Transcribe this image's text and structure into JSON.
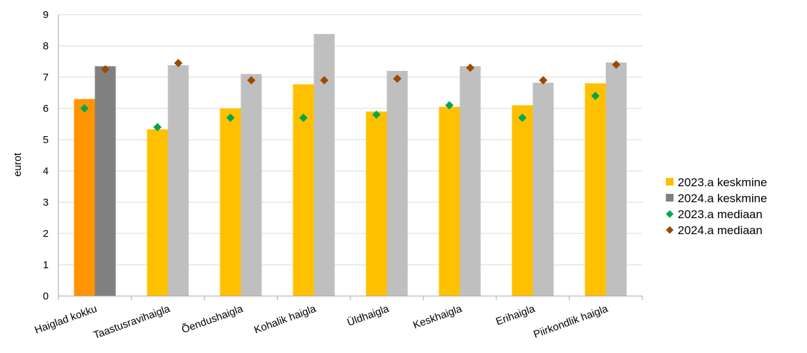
{
  "chart_data": {
    "type": "bar",
    "categories": [
      "Haiglad kokku",
      "Taastusravihaigla",
      "Õendushaigla",
      "Kohalik haigla",
      "Üldhaigla",
      "Keskhaigla",
      "Erihaigla",
      "Piirkondlik haigla"
    ],
    "series": [
      {
        "name": "2023.a keskmine",
        "kind": "bar",
        "color": "#FFC000",
        "highlight_color": "#FF9400",
        "values": [
          6.3,
          5.33,
          6.0,
          6.77,
          5.9,
          6.05,
          6.1,
          6.8
        ]
      },
      {
        "name": "2024.a keskmine",
        "kind": "bar",
        "color": "#BFBFBF",
        "highlight_color": "#808080",
        "values": [
          7.35,
          7.38,
          7.1,
          8.38,
          7.2,
          7.35,
          6.82,
          7.47
        ]
      },
      {
        "name": "2023.a mediaan",
        "kind": "marker",
        "color": "#00A650",
        "values": [
          6.0,
          5.4,
          5.7,
          5.7,
          5.8,
          6.1,
          5.7,
          6.4
        ]
      },
      {
        "name": "2024.a mediaan",
        "kind": "marker",
        "color": "#9C4A00",
        "values": [
          7.25,
          7.45,
          6.9,
          6.9,
          6.95,
          7.3,
          6.9,
          7.4
        ]
      }
    ],
    "ylabel": "eurot",
    "ylim": [
      0,
      9
    ],
    "yticks": [
      0,
      1,
      2,
      3,
      4,
      5,
      6,
      7,
      8,
      9
    ],
    "grid": true,
    "legend_position": "right"
  }
}
